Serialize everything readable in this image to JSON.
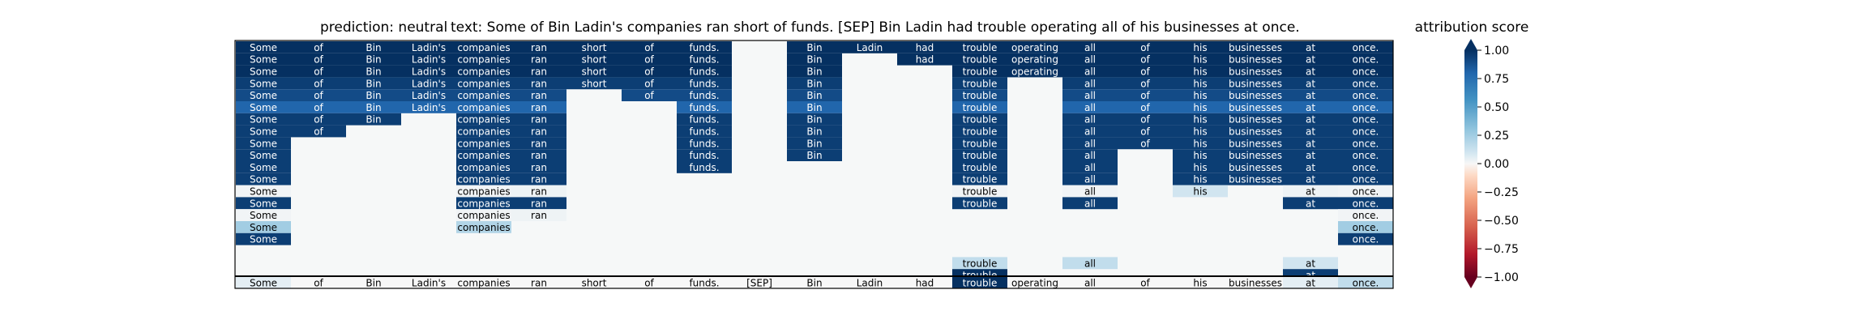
{
  "chart_data": {
    "type": "heatmap",
    "title_prediction": "prediction:  neutral",
    "title_text": "text:  Some of Bin Ladin's companies ran short of funds. [SEP] Bin Ladin had trouble operating all of his businesses at once.",
    "colorbar_title": "attribution score",
    "colorbar": {
      "vmin": -1.0,
      "vmax": 1.0,
      "ticks": [
        1.0,
        0.75,
        0.5,
        0.25,
        0.0,
        -0.25,
        -0.5,
        -0.75,
        -1.0
      ],
      "tick_labels": [
        "1.00",
        "0.75",
        "0.50",
        "0.25",
        "0.00",
        "−0.25",
        "−0.50",
        "−0.75",
        "−1.00"
      ],
      "colormap": "RdBu",
      "extend": "both"
    },
    "tokens": [
      "Some",
      "of",
      "Bin",
      "Ladin's",
      "companies",
      "ran",
      "short",
      "of",
      "funds.",
      "[SEP]",
      "Bin",
      "Ladin",
      "had",
      "trouble",
      "operating",
      "all",
      "of",
      "his",
      "businesses",
      "at",
      "once."
    ],
    "rows": [
      [
        1,
        1,
        1,
        1,
        1,
        1,
        1,
        1,
        1,
        null,
        1,
        1,
        1,
        1,
        1,
        1,
        1,
        1,
        1,
        1,
        1
      ],
      [
        1,
        1,
        1,
        1,
        1,
        1,
        1,
        1,
        1,
        null,
        1,
        null,
        1,
        1,
        1,
        1,
        1,
        1,
        1,
        1,
        1
      ],
      [
        1,
        1,
        1,
        1,
        1,
        1,
        1,
        1,
        1,
        null,
        1,
        null,
        null,
        1,
        1,
        1,
        1,
        1,
        1,
        1,
        1
      ],
      [
        0.95,
        0.95,
        0.95,
        0.95,
        0.95,
        0.95,
        0.95,
        0.95,
        0.95,
        null,
        0.95,
        null,
        null,
        0.95,
        null,
        0.95,
        0.95,
        0.95,
        0.95,
        0.95,
        0.95
      ],
      [
        0.9,
        0.9,
        0.9,
        0.9,
        0.9,
        0.9,
        null,
        0.9,
        0.9,
        null,
        0.9,
        null,
        null,
        0.9,
        null,
        0.9,
        0.9,
        0.9,
        0.9,
        0.9,
        0.9
      ],
      [
        0.8,
        0.8,
        0.8,
        0.8,
        0.8,
        0.8,
        null,
        null,
        0.8,
        null,
        0.8,
        null,
        null,
        0.8,
        null,
        0.8,
        0.8,
        0.8,
        0.8,
        0.8,
        0.8
      ],
      [
        0.95,
        0.95,
        0.95,
        null,
        0.95,
        0.95,
        null,
        null,
        0.95,
        null,
        0.95,
        null,
        null,
        0.95,
        null,
        0.95,
        0.95,
        0.95,
        0.95,
        0.95,
        0.95
      ],
      [
        0.95,
        0.95,
        null,
        null,
        0.95,
        0.95,
        null,
        null,
        0.95,
        null,
        0.95,
        null,
        null,
        0.95,
        null,
        0.95,
        0.95,
        0.95,
        0.95,
        0.95,
        0.95
      ],
      [
        0.95,
        null,
        null,
        null,
        0.95,
        0.95,
        null,
        null,
        0.95,
        null,
        0.95,
        null,
        null,
        0.95,
        null,
        0.95,
        0.95,
        0.95,
        0.95,
        0.95,
        0.95
      ],
      [
        0.95,
        null,
        null,
        null,
        0.95,
        0.95,
        null,
        null,
        0.95,
        null,
        0.95,
        null,
        null,
        0.95,
        null,
        0.95,
        null,
        0.95,
        0.95,
        0.95,
        0.95
      ],
      [
        0.95,
        null,
        null,
        null,
        0.95,
        0.95,
        null,
        null,
        0.95,
        null,
        null,
        null,
        null,
        0.95,
        null,
        0.95,
        null,
        0.95,
        0.95,
        0.95,
        0.95
      ],
      [
        0.95,
        null,
        null,
        null,
        0.95,
        0.95,
        null,
        null,
        null,
        null,
        null,
        null,
        null,
        0.95,
        null,
        0.95,
        null,
        0.95,
        0.95,
        0.95,
        0.95
      ],
      [
        0.03,
        null,
        null,
        null,
        0.03,
        0.05,
        null,
        null,
        null,
        null,
        null,
        null,
        null,
        0.03,
        null,
        0.03,
        null,
        0.2,
        null,
        0.05,
        0.03
      ],
      [
        0.95,
        null,
        null,
        null,
        0.95,
        0.95,
        null,
        null,
        null,
        null,
        null,
        null,
        null,
        0.95,
        null,
        0.95,
        null,
        null,
        null,
        0.95,
        0.95
      ],
      [
        0.03,
        null,
        null,
        null,
        0.03,
        0.05,
        null,
        null,
        null,
        null,
        null,
        null,
        null,
        null,
        null,
        null,
        null,
        null,
        null,
        null,
        0.03
      ],
      [
        0.35,
        null,
        null,
        null,
        0.3,
        null,
        null,
        null,
        null,
        null,
        null,
        null,
        null,
        null,
        null,
        null,
        null,
        null,
        null,
        null,
        0.35
      ],
      [
        0.95,
        null,
        null,
        null,
        null,
        null,
        null,
        null,
        null,
        null,
        null,
        null,
        null,
        null,
        null,
        null,
        null,
        null,
        null,
        null,
        0.95
      ],
      [
        null,
        null,
        null,
        null,
        null,
        null,
        null,
        null,
        null,
        null,
        null,
        null,
        null,
        null,
        null,
        null,
        null,
        null,
        null,
        null,
        null
      ],
      [
        null,
        null,
        null,
        null,
        null,
        null,
        null,
        null,
        null,
        null,
        null,
        null,
        null,
        0.25,
        null,
        0.25,
        null,
        null,
        null,
        0.2,
        null
      ],
      [
        null,
        null,
        null,
        null,
        null,
        null,
        null,
        null,
        null,
        null,
        null,
        null,
        null,
        1,
        null,
        null,
        null,
        null,
        null,
        0.95,
        null
      ]
    ],
    "attribution_row": [
      0.1,
      0.0,
      0.0,
      0.0,
      0.0,
      0.0,
      0.0,
      0.0,
      0.0,
      0.0,
      0.0,
      0.0,
      0.0,
      1.0,
      0.0,
      0.0,
      0.0,
      0.0,
      0.0,
      0.1,
      0.25
    ]
  }
}
